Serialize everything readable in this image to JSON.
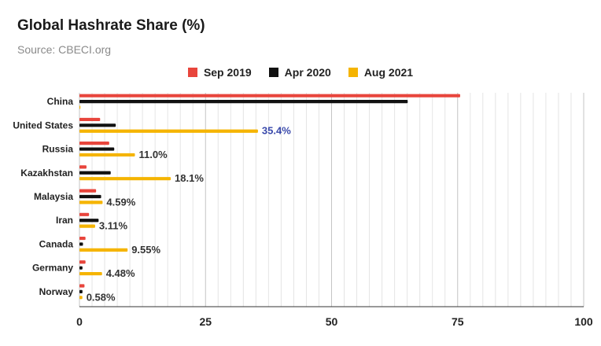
{
  "chart_data": {
    "type": "bar",
    "orientation": "horizontal",
    "title": "Global Hashrate Share (%)",
    "subtitle": "Source: CBECI.org",
    "xlim": [
      0,
      100
    ],
    "xticks": [
      0,
      25,
      50,
      75,
      100
    ],
    "grid": true,
    "legend_position": "top",
    "categories": [
      "China",
      "United States",
      "Russia",
      "Kazakhstan",
      "Malaysia",
      "Iran",
      "Canada",
      "Germany",
      "Norway"
    ],
    "series": [
      {
        "name": "Sep 2019",
        "color": "#e8453c",
        "values": [
          75.5,
          4.1,
          5.9,
          1.4,
          3.3,
          1.9,
          1.2,
          1.2,
          1.0
        ]
      },
      {
        "name": "Apr 2020",
        "color": "#111111",
        "values": [
          65.1,
          7.2,
          6.9,
          6.2,
          4.3,
          3.8,
          0.7,
          0.6,
          0.6
        ]
      },
      {
        "name": "Aug 2021",
        "color": "#f5b400",
        "values": [
          0,
          35.4,
          11.0,
          18.1,
          4.59,
          3.11,
          9.55,
          4.48,
          0.58
        ]
      }
    ],
    "data_labels": [
      "",
      "35.4%",
      "11.0%",
      "18.1%",
      "4.59%",
      "3.11%",
      "9.55%",
      "4.48%",
      "0.58%"
    ],
    "highlight_label_color": "#3949ab"
  }
}
